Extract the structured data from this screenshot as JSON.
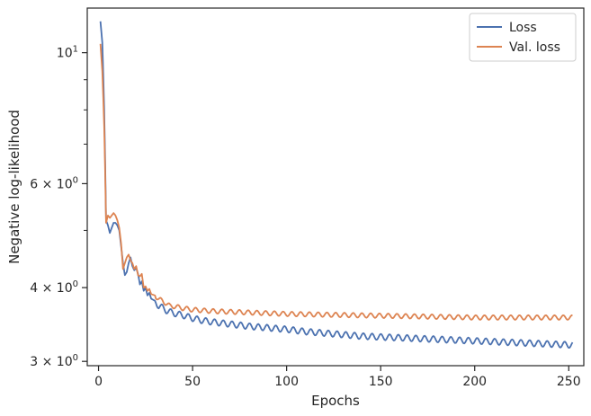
{
  "chart_data": {
    "type": "line",
    "xlabel": "Epochs",
    "ylabel": "Negative log-likelihood",
    "yscale": "log",
    "xlim": [
      -6,
      258
    ],
    "ylim": [
      2.95,
      11.9
    ],
    "xticks": [
      {
        "value": 0,
        "label": "0"
      },
      {
        "value": 50,
        "label": "50"
      },
      {
        "value": 100,
        "label": "100"
      },
      {
        "value": 150,
        "label": "150"
      },
      {
        "value": 200,
        "label": "200"
      },
      {
        "value": 250,
        "label": "250"
      }
    ],
    "yticks_major": [
      {
        "value": 3,
        "base": "3 × 10",
        "exp": "0"
      },
      {
        "value": 4,
        "base": "4 × 10",
        "exp": "0"
      },
      {
        "value": 6,
        "base": "6 × 10",
        "exp": "0"
      },
      {
        "value": 10,
        "base": "10",
        "exp": "1"
      }
    ],
    "yticks_minor": [
      5,
      7,
      8,
      9
    ],
    "legend_position": "top-right",
    "grid": false,
    "series": [
      {
        "name": "Loss",
        "color": "#4c72b0",
        "points": [
          [
            1,
            11.3
          ],
          [
            2,
            10.4
          ],
          [
            3,
            8.0
          ],
          [
            4,
            5.2
          ],
          [
            5,
            5.1
          ],
          [
            6,
            4.95
          ],
          [
            7,
            5.05
          ],
          [
            8,
            5.15
          ],
          [
            9,
            5.15
          ],
          [
            10,
            5.1
          ],
          [
            11,
            5.0
          ],
          [
            12,
            4.7
          ],
          [
            13,
            4.4
          ],
          [
            14,
            4.2
          ],
          [
            15,
            4.25
          ],
          [
            16,
            4.4
          ],
          [
            17,
            4.5
          ],
          [
            18,
            4.35
          ],
          [
            19,
            4.28
          ],
          [
            20,
            4.32
          ],
          [
            21,
            4.22
          ],
          [
            22,
            4.05
          ],
          [
            23,
            4.1
          ],
          [
            24,
            3.95
          ],
          [
            25,
            4.0
          ],
          [
            26,
            3.88
          ],
          [
            27,
            3.92
          ],
          [
            28,
            3.83
          ],
          [
            30,
            3.8
          ],
          [
            32,
            3.72
          ],
          [
            34,
            3.7
          ],
          [
            36,
            3.66
          ],
          [
            38,
            3.64
          ],
          [
            40,
            3.62
          ],
          [
            45,
            3.59
          ],
          [
            50,
            3.55
          ],
          [
            55,
            3.52
          ],
          [
            60,
            3.5
          ],
          [
            70,
            3.47
          ],
          [
            80,
            3.44
          ],
          [
            90,
            3.42
          ],
          [
            100,
            3.4
          ],
          [
            110,
            3.37
          ],
          [
            120,
            3.35
          ],
          [
            130,
            3.33
          ],
          [
            140,
            3.31
          ],
          [
            150,
            3.3
          ],
          [
            160,
            3.29
          ],
          [
            170,
            3.28
          ],
          [
            180,
            3.27
          ],
          [
            190,
            3.26
          ],
          [
            200,
            3.25
          ],
          [
            210,
            3.24
          ],
          [
            220,
            3.23
          ],
          [
            230,
            3.22
          ],
          [
            240,
            3.21
          ],
          [
            250,
            3.2
          ],
          [
            252,
            3.2
          ]
        ],
        "oscillation": 0.012
      },
      {
        "name": "Val. loss",
        "color": "#dd8452",
        "points": [
          [
            1,
            10.35
          ],
          [
            2,
            9.3
          ],
          [
            3,
            7.5
          ],
          [
            4,
            5.15
          ],
          [
            5,
            5.3
          ],
          [
            6,
            5.25
          ],
          [
            7,
            5.3
          ],
          [
            8,
            5.35
          ],
          [
            9,
            5.3
          ],
          [
            10,
            5.2
          ],
          [
            11,
            5.05
          ],
          [
            12,
            4.75
          ],
          [
            13,
            4.3
          ],
          [
            14,
            4.4
          ],
          [
            15,
            4.5
          ],
          [
            16,
            4.55
          ],
          [
            17,
            4.45
          ],
          [
            18,
            4.4
          ],
          [
            19,
            4.3
          ],
          [
            20,
            4.35
          ],
          [
            21,
            4.2
          ],
          [
            22,
            4.18
          ],
          [
            23,
            4.22
          ],
          [
            24,
            4.0
          ],
          [
            25,
            4.02
          ],
          [
            26,
            3.95
          ],
          [
            27,
            3.98
          ],
          [
            28,
            3.9
          ],
          [
            30,
            3.88
          ],
          [
            32,
            3.82
          ],
          [
            34,
            3.8
          ],
          [
            36,
            3.76
          ],
          [
            38,
            3.72
          ],
          [
            40,
            3.72
          ],
          [
            45,
            3.69
          ],
          [
            50,
            3.67
          ],
          [
            55,
            3.66
          ],
          [
            60,
            3.65
          ],
          [
            70,
            3.64
          ],
          [
            80,
            3.63
          ],
          [
            90,
            3.62
          ],
          [
            100,
            3.61
          ],
          [
            120,
            3.6
          ],
          [
            140,
            3.59
          ],
          [
            160,
            3.58
          ],
          [
            180,
            3.57
          ],
          [
            200,
            3.56
          ],
          [
            220,
            3.56
          ],
          [
            240,
            3.56
          ],
          [
            252,
            3.56
          ]
        ],
        "oscillation": 0.009
      }
    ]
  }
}
